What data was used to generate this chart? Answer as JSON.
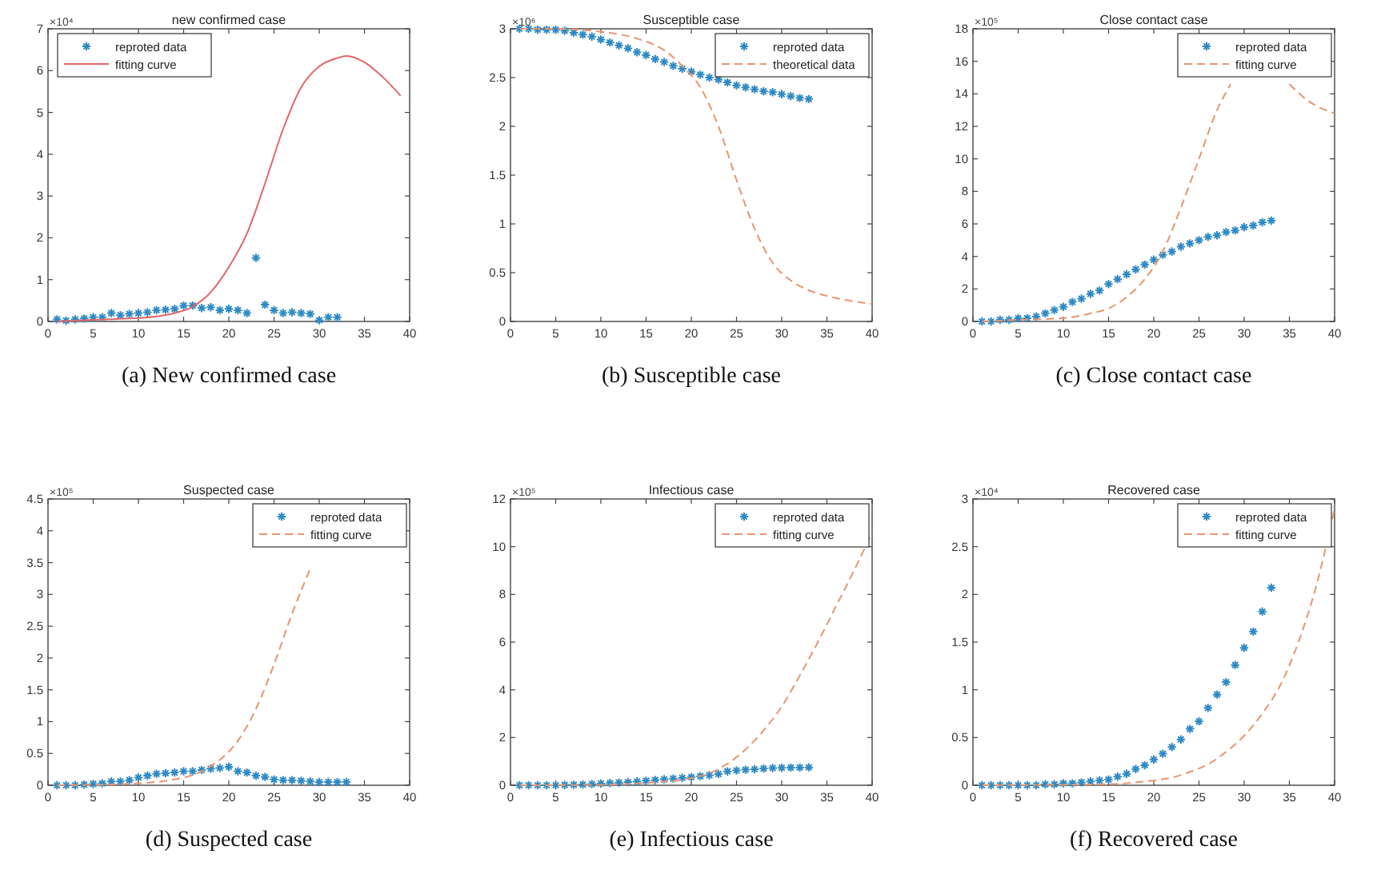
{
  "chart_data": [
    {
      "type": "scatter",
      "title": "new confirmed case",
      "xlim": [
        0,
        40
      ],
      "xticks": [
        0,
        5,
        10,
        15,
        20,
        25,
        30,
        35,
        40
      ],
      "ylim": [
        0,
        7
      ],
      "yticks": [
        0,
        1,
        2,
        3,
        4,
        5,
        6,
        7
      ],
      "grid": false,
      "legend": "top left",
      "annotations": [
        "×10⁴",
        "(a) New confirmed case"
      ],
      "series": [
        {
          "name": "reproted data",
          "marker": "cross",
          "color": "#2f8ac4",
          "x": [
            1,
            2,
            3,
            4,
            5,
            6,
            7,
            8,
            9,
            10,
            11,
            12,
            13,
            14,
            15,
            16,
            17,
            18,
            19,
            20,
            21,
            22,
            23,
            24,
            25,
            26,
            27,
            28,
            29,
            30,
            31,
            32
          ],
          "values": [
            0.05,
            0.02,
            0.05,
            0.07,
            0.1,
            0.1,
            0.2,
            0.15,
            0.18,
            0.2,
            0.22,
            0.27,
            0.28,
            0.3,
            0.38,
            0.38,
            0.32,
            0.34,
            0.27,
            0.3,
            0.27,
            0.2,
            1.52,
            0.4,
            0.27,
            0.2,
            0.22,
            0.2,
            0.18,
            0.03,
            0.1,
            0.1
          ]
        },
        {
          "name": "fitting curve",
          "type": "line",
          "line_style": "solid",
          "color": "#e06666",
          "x": [
            1,
            6,
            10,
            14,
            16,
            18,
            20,
            22,
            24,
            26,
            28,
            30,
            32,
            33,
            35,
            37,
            39
          ],
          "values": [
            0,
            0.05,
            0.08,
            0.2,
            0.35,
            0.7,
            1.3,
            2.1,
            3.3,
            4.6,
            5.6,
            6.1,
            6.3,
            6.35,
            6.2,
            5.85,
            5.4
          ]
        }
      ]
    },
    {
      "type": "scatter",
      "title": "Susceptible case",
      "xlim": [
        0,
        40
      ],
      "xticks": [
        0,
        5,
        10,
        15,
        20,
        25,
        30,
        35,
        40
      ],
      "ylim": [
        0,
        3
      ],
      "yticks": [
        0,
        0.5,
        1,
        1.5,
        2,
        2.5,
        3
      ],
      "grid": false,
      "legend": "top right",
      "annotations": [
        "×10⁶",
        "(b) Susceptible case"
      ],
      "series": [
        {
          "name": "reproted data",
          "marker": "cross",
          "color": "#2f8ac4",
          "x": [
            1,
            2,
            3,
            4,
            5,
            6,
            7,
            8,
            9,
            10,
            11,
            12,
            13,
            14,
            15,
            16,
            17,
            18,
            19,
            20,
            21,
            22,
            23,
            24,
            25,
            26,
            27,
            28,
            29,
            30,
            31,
            32,
            33
          ],
          "values": [
            3.0,
            3.0,
            2.99,
            2.99,
            2.99,
            2.98,
            2.96,
            2.94,
            2.92,
            2.89,
            2.86,
            2.83,
            2.8,
            2.76,
            2.73,
            2.69,
            2.66,
            2.62,
            2.59,
            2.56,
            2.53,
            2.5,
            2.48,
            2.45,
            2.42,
            2.4,
            2.38,
            2.36,
            2.35,
            2.33,
            2.31,
            2.29,
            2.28
          ]
        },
        {
          "name": "theoretical data",
          "type": "line",
          "line_style": "dashed",
          "color": "#e8956f",
          "x": [
            1,
            5,
            10,
            14,
            17,
            19,
            21,
            23,
            25,
            27,
            29,
            31,
            33,
            36,
            40
          ],
          "values": [
            3.0,
            3.0,
            2.97,
            2.9,
            2.78,
            2.62,
            2.4,
            2.0,
            1.45,
            0.95,
            0.6,
            0.42,
            0.32,
            0.24,
            0.18
          ]
        }
      ]
    },
    {
      "type": "scatter",
      "title": "Close contact case",
      "xlim": [
        0,
        40
      ],
      "xticks": [
        0,
        5,
        10,
        15,
        20,
        25,
        30,
        35,
        40
      ],
      "ylim": [
        0,
        18
      ],
      "yticks": [
        0,
        2,
        4,
        6,
        8,
        10,
        12,
        14,
        16,
        18
      ],
      "grid": false,
      "legend": "top right",
      "annotations": [
        "×10⁵",
        "(c) Close contact case"
      ],
      "series": [
        {
          "name": "reproted data",
          "marker": "cross",
          "color": "#2f8ac4",
          "x": [
            1,
            2,
            3,
            4,
            5,
            6,
            7,
            8,
            9,
            10,
            11,
            12,
            13,
            14,
            15,
            16,
            17,
            18,
            19,
            20,
            21,
            22,
            23,
            24,
            25,
            26,
            27,
            28,
            29,
            30,
            31,
            32,
            33
          ],
          "values": [
            0,
            0,
            0.1,
            0.1,
            0.2,
            0.2,
            0.3,
            0.5,
            0.7,
            0.9,
            1.2,
            1.4,
            1.7,
            1.9,
            2.3,
            2.6,
            2.9,
            3.2,
            3.5,
            3.8,
            4.1,
            4.3,
            4.6,
            4.8,
            5.0,
            5.2,
            5.3,
            5.5,
            5.6,
            5.8,
            5.9,
            6.1,
            6.2
          ]
        },
        {
          "name": "fitting curve",
          "type": "line",
          "line_style": "dashed",
          "color": "#e8956f",
          "x": [
            1,
            5,
            10,
            13,
            15,
            17,
            19,
            21,
            23,
            25,
            27,
            28.5,
            31,
            35,
            37,
            40
          ],
          "values": [
            0,
            0.1,
            0.2,
            0.5,
            0.8,
            1.5,
            2.6,
            4.3,
            7.0,
            10,
            13,
            14.6,
            null,
            14.6,
            13.6,
            12.8
          ]
        }
      ]
    },
    {
      "type": "scatter",
      "title": "Suspected case",
      "xlim": [
        0,
        40
      ],
      "xticks": [
        0,
        5,
        10,
        15,
        20,
        25,
        30,
        35,
        40
      ],
      "ylim": [
        0,
        4.5
      ],
      "yticks": [
        0,
        0.5,
        1,
        1.5,
        2,
        2.5,
        3,
        3.5,
        4,
        4.5
      ],
      "grid": false,
      "legend": "top right",
      "annotations": [
        "×10⁵",
        "(d) Suspected case"
      ],
      "series": [
        {
          "name": "reproted data",
          "marker": "cross",
          "color": "#2f8ac4",
          "x": [
            1,
            2,
            3,
            4,
            5,
            6,
            7,
            8,
            9,
            10,
            11,
            12,
            13,
            14,
            15,
            16,
            17,
            18,
            19,
            20,
            21,
            22,
            23,
            24,
            25,
            26,
            27,
            28,
            29,
            30,
            31,
            32,
            33
          ],
          "values": [
            0,
            0,
            0,
            0.01,
            0.02,
            0.03,
            0.06,
            0.06,
            0.08,
            0.12,
            0.15,
            0.18,
            0.19,
            0.2,
            0.22,
            0.22,
            0.24,
            0.26,
            0.27,
            0.29,
            0.22,
            0.2,
            0.15,
            0.13,
            0.09,
            0.08,
            0.08,
            0.07,
            0.06,
            0.05,
            0.05,
            0.05,
            0.05
          ]
        },
        {
          "name": "fitting curve",
          "type": "line",
          "line_style": "dashed",
          "color": "#e8956f",
          "x": [
            1,
            6,
            10,
            13,
            15,
            17,
            19,
            21,
            23,
            25,
            27,
            29
          ],
          "values": [
            0,
            0.01,
            0.03,
            0.07,
            0.12,
            0.22,
            0.4,
            0.7,
            1.2,
            1.9,
            2.7,
            3.4
          ]
        }
      ]
    },
    {
      "type": "scatter",
      "title": "Infectious case",
      "xlim": [
        0,
        40
      ],
      "xticks": [
        0,
        5,
        10,
        15,
        20,
        25,
        30,
        35,
        40
      ],
      "ylim": [
        0,
        12
      ],
      "yticks": [
        0,
        2,
        4,
        6,
        8,
        10,
        12
      ],
      "grid": false,
      "legend": "top right",
      "annotations": [
        "×10⁵",
        "(e) Infectious case"
      ],
      "series": [
        {
          "name": "reproted data",
          "marker": "cross",
          "color": "#2f8ac4",
          "x": [
            1,
            2,
            3,
            4,
            5,
            6,
            7,
            8,
            9,
            10,
            11,
            12,
            13,
            14,
            15,
            16,
            17,
            18,
            19,
            20,
            21,
            22,
            23,
            24,
            25,
            26,
            27,
            28,
            29,
            30,
            31,
            32,
            33
          ],
          "values": [
            0,
            0,
            0,
            0,
            0,
            0.01,
            0.02,
            0.03,
            0.05,
            0.07,
            0.09,
            0.11,
            0.13,
            0.16,
            0.19,
            0.22,
            0.25,
            0.28,
            0.31,
            0.34,
            0.38,
            0.42,
            0.47,
            0.58,
            0.62,
            0.65,
            0.67,
            0.7,
            0.72,
            0.73,
            0.74,
            0.74,
            0.75
          ]
        },
        {
          "name": "fitting curve",
          "type": "line",
          "line_style": "dashed",
          "color": "#e8956f",
          "x": [
            1,
            10,
            15,
            20,
            22,
            24,
            26,
            28,
            30,
            32,
            34,
            36,
            38,
            40
          ],
          "values": [
            0,
            0.02,
            0.1,
            0.3,
            0.5,
            0.9,
            1.5,
            2.3,
            3.3,
            4.6,
            6.0,
            7.5,
            9.0,
            10.6
          ]
        }
      ]
    },
    {
      "type": "scatter",
      "title": "Recovered case",
      "xlim": [
        0,
        40
      ],
      "xticks": [
        0,
        5,
        10,
        15,
        20,
        25,
        30,
        35,
        40
      ],
      "ylim": [
        0,
        3
      ],
      "yticks": [
        0,
        0.5,
        1,
        1.5,
        2,
        2.5,
        3
      ],
      "grid": false,
      "legend": "top right",
      "annotations": [
        "×10⁴",
        "(f) Recovered case"
      ],
      "series": [
        {
          "name": "reproted data",
          "marker": "cross",
          "color": "#2f8ac4",
          "x": [
            1,
            2,
            3,
            4,
            5,
            6,
            7,
            8,
            9,
            10,
            11,
            12,
            13,
            14,
            15,
            16,
            17,
            18,
            19,
            20,
            21,
            22,
            23,
            24,
            25,
            26,
            27,
            28,
            29,
            30,
            31,
            32,
            33
          ],
          "values": [
            0,
            0,
            0,
            0,
            0,
            0,
            0,
            0.01,
            0.01,
            0.02,
            0.02,
            0.03,
            0.04,
            0.05,
            0.06,
            0.09,
            0.12,
            0.17,
            0.21,
            0.27,
            0.33,
            0.4,
            0.48,
            0.59,
            0.67,
            0.81,
            0.95,
            1.08,
            1.26,
            1.44,
            1.61,
            1.82,
            2.07
          ]
        },
        {
          "name": "fitting curve",
          "type": "line",
          "line_style": "dashed",
          "color": "#e8956f",
          "x": [
            1,
            15,
            18,
            20,
            22,
            24,
            26,
            28,
            30,
            32,
            34,
            36,
            38,
            40
          ],
          "values": [
            0,
            0.01,
            0.03,
            0.05,
            0.08,
            0.14,
            0.22,
            0.35,
            0.52,
            0.75,
            1.05,
            1.5,
            2.1,
            2.9
          ]
        }
      ]
    }
  ]
}
